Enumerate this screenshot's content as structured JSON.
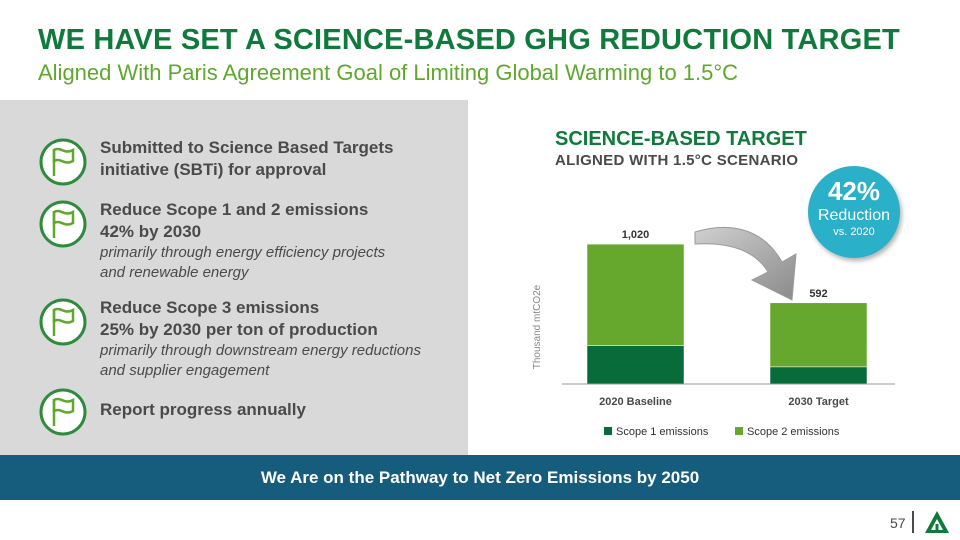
{
  "header": {
    "title": "WE HAVE SET A SCIENCE-BASED GHG REDUCTION TARGET",
    "subtitle": "Aligned With Paris Agreement Goal of Limiting Global Warming to 1.5°C"
  },
  "items": [
    {
      "icon": "flag-icon",
      "lines": [
        "Submitted to Science Based Targets",
        "initiative (SBTi) for approval"
      ],
      "details": []
    },
    {
      "icon": "flag-icon",
      "lines": [
        "Reduce Scope 1 and 2 emissions",
        "42% by 2030"
      ],
      "details": [
        "primarily through energy efficiency projects",
        "and renewable energy"
      ]
    },
    {
      "icon": "flag-icon",
      "lines": [
        "Reduce Scope 3 emissions",
        "25% by 2030 per ton of production"
      ],
      "details": [
        "primarily through downstream energy reductions",
        "and supplier engagement"
      ]
    },
    {
      "icon": "flag-icon",
      "lines": [
        "Report progress annually"
      ],
      "details": []
    }
  ],
  "chart_panel": {
    "title": "SCIENCE-BASED TARGET",
    "subtitle": "ALIGNED WITH 1.5°C SCENARIO"
  },
  "badge": {
    "percent": "42%",
    "label": "Reduction",
    "note": "vs. 2020"
  },
  "chart_data": {
    "type": "bar",
    "stacked": true,
    "categories": [
      "2020 Baseline",
      "2030 Target"
    ],
    "totals_labels": [
      "1,020",
      "592"
    ],
    "series": [
      {
        "name": "Scope 1 emissions",
        "values": [
          280,
          125
        ],
        "color": "#086b3a"
      },
      {
        "name": "Scope 2 emissions",
        "values": [
          740,
          467
        ],
        "color": "#66a82e"
      }
    ],
    "ylabel": "Thousand mtCO2e",
    "ylim": [
      0,
      1050
    ],
    "legend": "bottom",
    "grid": false
  },
  "banner": "We Are on the Pathway to Net Zero Emissions by 2050",
  "footer": {
    "page": "57",
    "logo_icon": "triangle-logo-icon"
  },
  "colors": {
    "dark_green": "#0f7a3c",
    "light_green": "#5fa82d",
    "teal": "#2ab0c8",
    "navy": "#165c7d"
  }
}
